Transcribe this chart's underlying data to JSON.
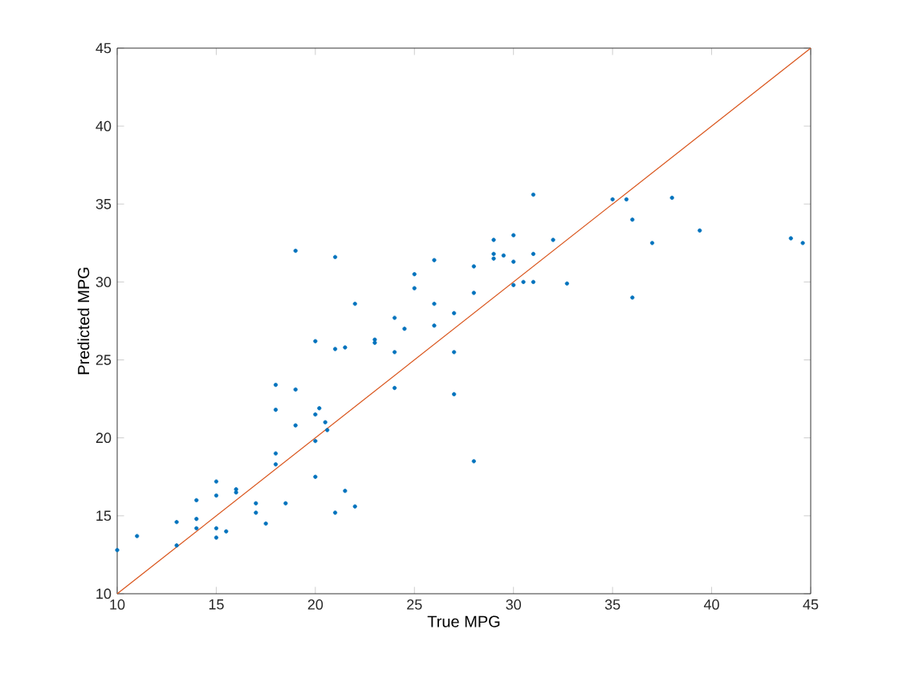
{
  "chart_data": {
    "type": "scatter",
    "xlabel": "True MPG",
    "ylabel": "Predicted MPG",
    "xlim": [
      10,
      45
    ],
    "ylim": [
      10,
      45
    ],
    "xticks": [
      10,
      15,
      20,
      25,
      30,
      35,
      40,
      45
    ],
    "yticks": [
      10,
      15,
      20,
      25,
      30,
      35,
      40,
      45
    ],
    "marker": "circle",
    "series": [
      {
        "color": "#0072bd",
        "x": [
          10,
          11,
          13,
          13,
          14,
          14,
          14,
          15,
          15,
          15,
          15,
          15.5,
          16,
          16,
          17,
          17,
          17.5,
          18,
          18,
          18,
          18,
          18.5,
          19,
          19,
          19,
          20,
          20,
          20,
          20,
          20.2,
          20.5,
          20.6,
          21,
          21,
          21,
          21.5,
          21.5,
          22,
          22,
          23,
          23,
          24,
          24,
          24,
          24.5,
          25,
          25,
          26,
          26,
          26,
          27,
          27,
          27,
          28,
          28,
          28,
          29,
          29,
          29,
          29.5,
          30,
          30,
          30,
          30.5,
          31,
          31,
          31,
          32,
          32.7,
          35,
          35.7,
          36,
          36,
          37,
          38,
          39.4,
          44,
          44.6
        ],
        "values": [
          12.8,
          13.7,
          13.1,
          14.6,
          14.2,
          14.8,
          16,
          13.6,
          14.2,
          16.3,
          17.2,
          14,
          16.5,
          16.7,
          15.2,
          15.8,
          14.5,
          18.3,
          19,
          21.8,
          23.4,
          15.8,
          20.8,
          23.1,
          32,
          26.2,
          21.5,
          17.5,
          19.8,
          21.9,
          21,
          20.5,
          15.2,
          25.7,
          31.6,
          25.8,
          16.6,
          15.6,
          28.6,
          26.3,
          26.1,
          27.7,
          25.5,
          23.2,
          27,
          30.5,
          29.6,
          31.4,
          28.6,
          27.2,
          28,
          25.5,
          22.8,
          31,
          29.3,
          18.5,
          32.7,
          31.5,
          31.8,
          31.7,
          33,
          29.8,
          31.3,
          30,
          30,
          31.8,
          35.6,
          32.7,
          29.9,
          35.3,
          35.3,
          34,
          29,
          32.5,
          35.4,
          33.3,
          32.8,
          32.5
        ]
      },
      {
        "type": "line",
        "color": "#d95319",
        "marker": "none",
        "x": [
          10,
          45
        ],
        "values": [
          10,
          45
        ]
      }
    ]
  }
}
